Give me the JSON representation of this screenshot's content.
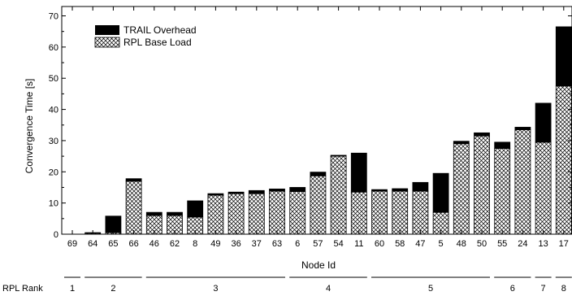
{
  "chart_data": {
    "type": "bar",
    "stacked": true,
    "xlabel": "Node Id",
    "ylabel": "Convergence Time [s]",
    "ylim": [
      0,
      73
    ],
    "yticks": [
      0,
      10,
      20,
      30,
      40,
      50,
      60,
      70
    ],
    "categories": [
      "69",
      "64",
      "65",
      "66",
      "46",
      "62",
      "8",
      "49",
      "36",
      "37",
      "63",
      "6",
      "57",
      "54",
      "11",
      "60",
      "58",
      "47",
      "5",
      "48",
      "50",
      "55",
      "24",
      "13",
      "17"
    ],
    "series": [
      {
        "name": "RPL Base Load",
        "color": "#ffffff",
        "pattern": "crosshatch",
        "values": [
          0,
          0.3,
          0.5,
          17,
          6,
          6,
          5.5,
          12.5,
          13,
          13,
          13.8,
          13.7,
          18.7,
          25,
          13.5,
          13.8,
          13.8,
          13.8,
          7,
          29,
          31.5,
          27.5,
          33.5,
          29.5,
          47.5
        ]
      },
      {
        "name": "TRAIL Overhead",
        "color": "#000000",
        "values": [
          0,
          0.2,
          5.3,
          0.8,
          1,
          1,
          5.2,
          0.5,
          0.5,
          1,
          0.7,
          1.3,
          1.2,
          0.3,
          12.5,
          0.5,
          0.8,
          2.8,
          12.5,
          0.8,
          1,
          2,
          0.8,
          12.5,
          19
        ]
      }
    ],
    "legend": {
      "placement": "top-left",
      "entries": [
        "TRAIL Overhead",
        "RPL Base Load"
      ]
    },
    "rank_axis": {
      "label": "RPL Rank",
      "groups": [
        {
          "rank": "1",
          "first": 0,
          "last": 0
        },
        {
          "rank": "2",
          "first": 1,
          "last": 3
        },
        {
          "rank": "3",
          "first": 4,
          "last": 10
        },
        {
          "rank": "4",
          "first": 11,
          "last": 14
        },
        {
          "rank": "5",
          "first": 15,
          "last": 20
        },
        {
          "rank": "6",
          "first": 21,
          "last": 22
        },
        {
          "rank": "7",
          "first": 23,
          "last": 23
        },
        {
          "rank": "8",
          "first": 24,
          "last": 24
        }
      ]
    }
  }
}
